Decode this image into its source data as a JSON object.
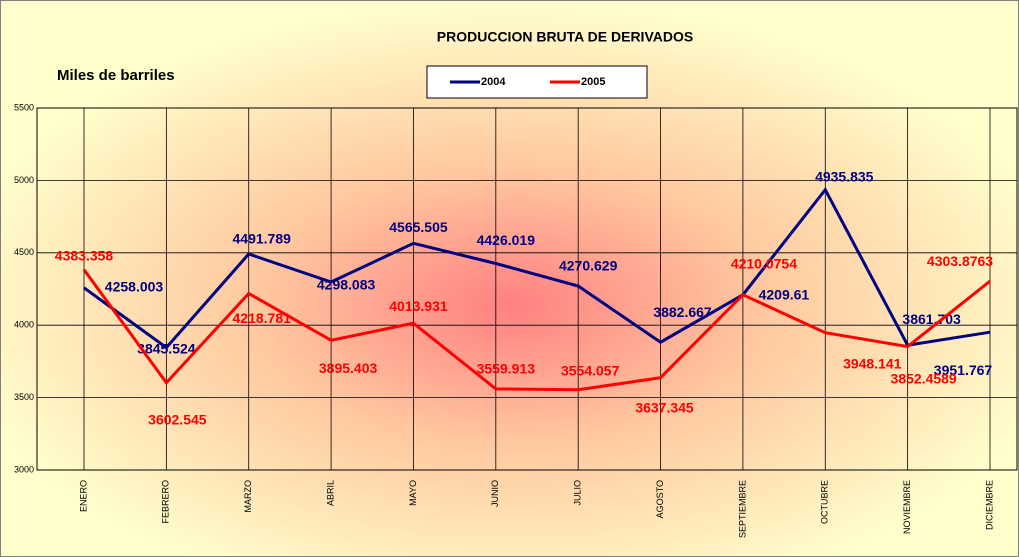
{
  "chart_data": {
    "type": "line",
    "title": "PRODUCCION BRUTA DE DERIVADOS",
    "ylabel": "Miles de barriles",
    "categories": [
      "ENERO",
      "FEBRERO",
      "MARZO",
      "ABRIL",
      "MAYO",
      "JUNIO",
      "JULIO",
      "AGOSTO",
      "SEPTIEMBRE",
      "OCTUBRE",
      "NOVIEMBRE",
      "DICIEMBRE"
    ],
    "series": [
      {
        "name": "2004",
        "color": "#000080",
        "values": [
          4258.003,
          3845.524,
          4491.789,
          4298.083,
          4565.505,
          4426.019,
          4270.629,
          3882.667,
          4209.61,
          4935.835,
          3861.703,
          3951.767
        ]
      },
      {
        "name": "2005",
        "color": "#ff0000",
        "values": [
          4383.358,
          3602.545,
          4218.781,
          3895.403,
          4013.931,
          3559.913,
          3554.057,
          3637.345,
          4210.0754,
          3948.141,
          3852.4589,
          4303.8763
        ]
      }
    ],
    "ylim": [
      3000,
      5500
    ],
    "yticks": [
      3000,
      3500,
      4000,
      4500,
      5000,
      5500
    ],
    "grid": true,
    "legend": "top"
  }
}
